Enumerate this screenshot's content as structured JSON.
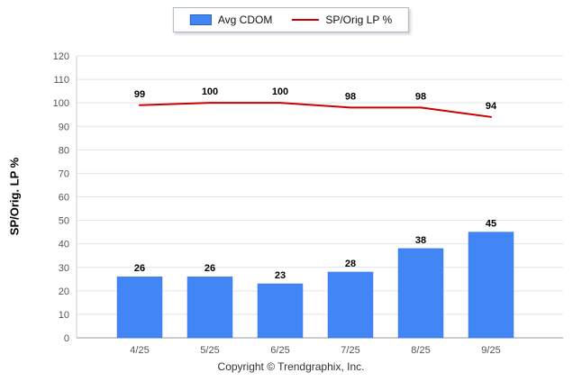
{
  "legend": {
    "items": [
      {
        "label": "Avg CDOM",
        "color": "#4285f4",
        "type": "bar"
      },
      {
        "label": "SP/Orig LP %",
        "color": "#cc0000",
        "type": "line"
      }
    ]
  },
  "ylabel": "SP/Orig. LP %",
  "footer": "Copyright © Trendgraphix, Inc.",
  "chart_data": {
    "type": "bar+line",
    "title": "",
    "categories": [
      "4/25",
      "5/25",
      "6/25",
      "7/25",
      "8/25",
      "9/25"
    ],
    "series": [
      {
        "name": "Avg CDOM",
        "type": "bar",
        "color": "#4285f4",
        "values": [
          26,
          26,
          23,
          28,
          38,
          45
        ]
      },
      {
        "name": "SP/Orig LP %",
        "type": "line",
        "color": "#cc0000",
        "values": [
          99,
          100,
          100,
          98,
          98,
          94
        ]
      }
    ],
    "xlabel": "",
    "ylabel": "SP/Orig. LP %",
    "ylim": [
      0,
      120
    ],
    "ytick_step": 10,
    "yticks": [
      0,
      10,
      20,
      30,
      40,
      50,
      60,
      70,
      80,
      90,
      100,
      110,
      120
    ],
    "grid": true,
    "legend_position": "top"
  }
}
